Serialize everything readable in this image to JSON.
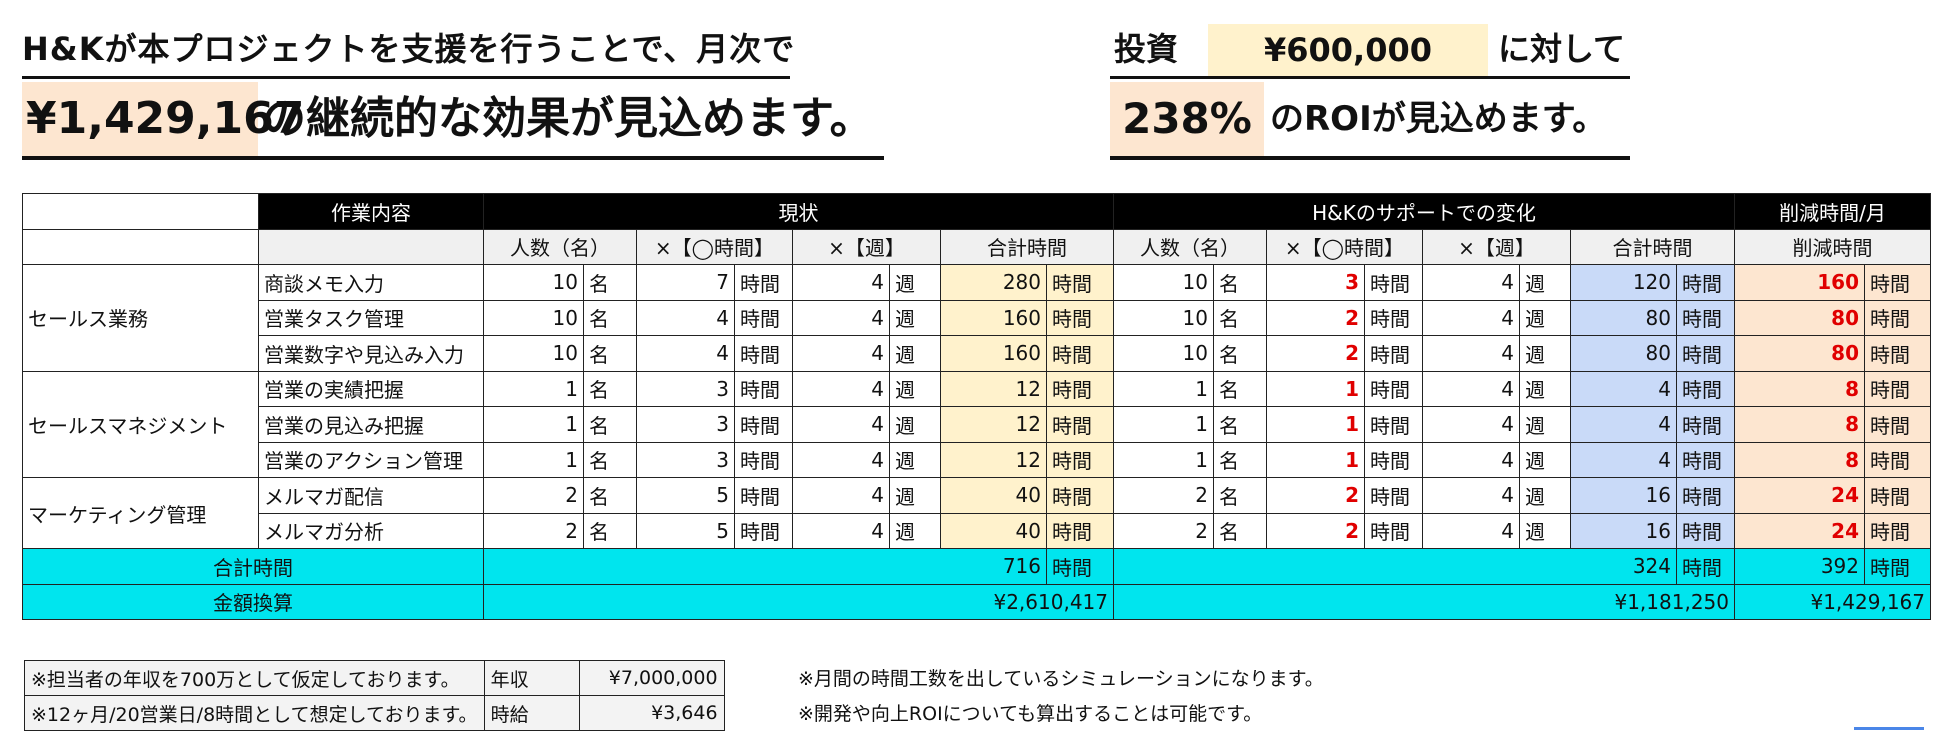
{
  "headline": {
    "line1": "H&Kが本プロジェクトを支援を行うことで、月次で",
    "amount": "¥1,429,167",
    "line2_suffix": "の継続的な効果が見込めます。",
    "investment_label": "投資",
    "investment_amount": "¥600,000",
    "investment_suffix": "に対して",
    "roi_value": "238%",
    "roi_suffix": "のROIが見込めます。"
  },
  "table": {
    "headers": {
      "task": "作業内容",
      "current": "現状",
      "support": "H&Kのサポートでの変化",
      "reduction": "削減時間/月",
      "people": "人数（名）",
      "hours": "×【◯時間】",
      "weeks": "×【週】",
      "total": "合計時間",
      "reduced": "削減時間"
    },
    "units": {
      "people": "名",
      "hours": "時間",
      "weeks": "週"
    },
    "categories": [
      "セールス業務",
      "セールスマネジメント",
      "マーケティング管理"
    ],
    "rows": [
      {
        "task": "商談メモ入力",
        "cur_people": "10",
        "cur_hours": "7",
        "cur_weeks": "4",
        "cur_total": "280",
        "new_people": "10",
        "new_hours": "3",
        "new_weeks": "4",
        "new_total": "120",
        "reduced": "160"
      },
      {
        "task": "営業タスク管理",
        "cur_people": "10",
        "cur_hours": "4",
        "cur_weeks": "4",
        "cur_total": "160",
        "new_people": "10",
        "new_hours": "2",
        "new_weeks": "4",
        "new_total": "80",
        "reduced": "80"
      },
      {
        "task": "営業数字や見込み入力",
        "cur_people": "10",
        "cur_hours": "4",
        "cur_weeks": "4",
        "cur_total": "160",
        "new_people": "10",
        "new_hours": "2",
        "new_weeks": "4",
        "new_total": "80",
        "reduced": "80"
      },
      {
        "task": "営業の実績把握",
        "cur_people": "1",
        "cur_hours": "3",
        "cur_weeks": "4",
        "cur_total": "12",
        "new_people": "1",
        "new_hours": "1",
        "new_weeks": "4",
        "new_total": "4",
        "reduced": "8"
      },
      {
        "task": "営業の見込み把握",
        "cur_people": "1",
        "cur_hours": "3",
        "cur_weeks": "4",
        "cur_total": "12",
        "new_people": "1",
        "new_hours": "1",
        "new_weeks": "4",
        "new_total": "4",
        "reduced": "8"
      },
      {
        "task": "営業のアクション管理",
        "cur_people": "1",
        "cur_hours": "3",
        "cur_weeks": "4",
        "cur_total": "12",
        "new_people": "1",
        "new_hours": "1",
        "new_weeks": "4",
        "new_total": "4",
        "reduced": "8"
      },
      {
        "task": "メルマガ配信",
        "cur_people": "2",
        "cur_hours": "5",
        "cur_weeks": "4",
        "cur_total": "40",
        "new_people": "2",
        "new_hours": "2",
        "new_weeks": "4",
        "new_total": "16",
        "reduced": "24"
      },
      {
        "task": "メルマガ分析",
        "cur_people": "2",
        "cur_hours": "5",
        "cur_weeks": "4",
        "cur_total": "40",
        "new_people": "2",
        "new_hours": "2",
        "new_weeks": "4",
        "new_total": "16",
        "reduced": "24"
      }
    ],
    "summary": {
      "total_label": "合計時間",
      "cur_total": "716",
      "new_total": "324",
      "reduced_total": "392",
      "money_label": "金額換算",
      "cur_money": "¥2,610,417",
      "new_money": "¥1,181,250",
      "reduced_money": "¥1,429,167"
    }
  },
  "notes": {
    "salary_note": "※担当者の年収を700万として仮定しております。",
    "salary_label": "年収",
    "salary_value": "¥7,000,000",
    "hourly_note": "※12ヶ月/20営業日/8時間として想定しております。",
    "hourly_label": "時給",
    "hourly_value": "¥3,646",
    "right1": "※月間の時間工数を出しているシミュレーションになります。",
    "right2": "※開発や向上ROIについても算出することは可能です。"
  },
  "colors": {
    "peach": "#fde6d0",
    "yellow": "#fff2cc",
    "blue": "#c9daf8",
    "cyan": "#00e5ee",
    "red": "#e00000"
  }
}
